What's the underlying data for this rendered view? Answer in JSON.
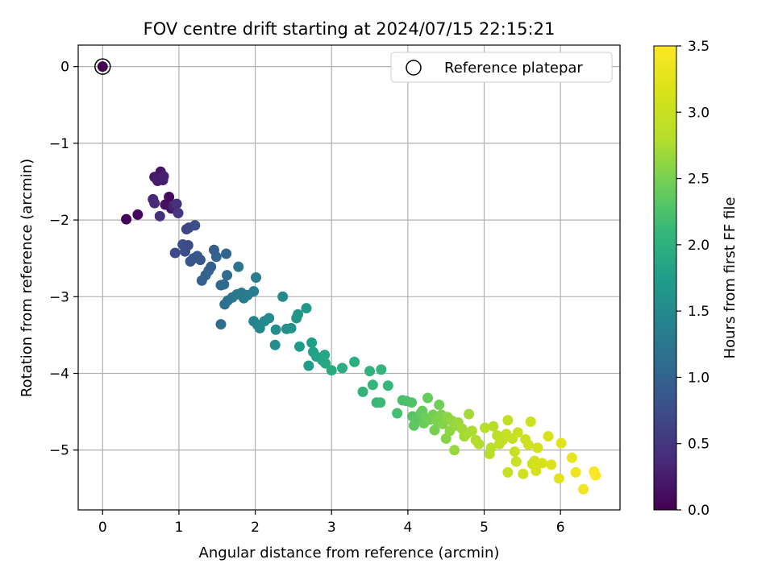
{
  "chart_data": {
    "type": "scatter",
    "title": "FOV centre drift starting at 2024/07/15 22:15:21",
    "xlabel": "Angular distance from reference (arcmin)",
    "ylabel": "Rotation from reference (arcmin)",
    "xlim": [
      -0.32,
      6.78
    ],
    "ylim": [
      -5.78,
      0.28
    ],
    "xticks": [
      0,
      1,
      2,
      3,
      4,
      5,
      6
    ],
    "yticks": [
      0,
      -1,
      -2,
      -3,
      -4,
      -5
    ],
    "xtick_labels": [
      "0",
      "1",
      "2",
      "3",
      "4",
      "5",
      "6"
    ],
    "ytick_labels": [
      "0",
      "−1",
      "−2",
      "−3",
      "−4",
      "−5"
    ],
    "grid": true,
    "legend": {
      "label": "Reference platepar",
      "position": "top-right"
    },
    "colorbar": {
      "label": "Hours from first FF file",
      "range": [
        0,
        3.5
      ],
      "ticks": [
        0.0,
        0.5,
        1.0,
        1.5,
        2.0,
        2.5,
        3.0,
        3.5
      ],
      "tick_labels": [
        "0.0",
        "0.5",
        "1.0",
        "1.5",
        "2.0",
        "2.5",
        "3.0",
        "3.5"
      ],
      "colormap": "viridis"
    },
    "reference_point": {
      "x": 0,
      "y": 0,
      "t": 0
    },
    "points": [
      {
        "x": 0.31,
        "y": -1.99,
        "t": 0.03
      },
      {
        "x": 0.46,
        "y": -1.93,
        "t": 0.05
      },
      {
        "x": 0.68,
        "y": -1.44,
        "t": 0.22
      },
      {
        "x": 0.72,
        "y": -1.49,
        "t": 0.25
      },
      {
        "x": 0.76,
        "y": -1.37,
        "t": 0.2
      },
      {
        "x": 0.79,
        "y": -1.48,
        "t": 0.24
      },
      {
        "x": 0.8,
        "y": -1.43,
        "t": 0.28
      },
      {
        "x": 0.66,
        "y": -1.73,
        "t": 0.35
      },
      {
        "x": 0.68,
        "y": -1.78,
        "t": 0.38
      },
      {
        "x": 0.75,
        "y": -1.95,
        "t": 0.42
      },
      {
        "x": 0.82,
        "y": -1.8,
        "t": 0.12
      },
      {
        "x": 0.87,
        "y": -1.7,
        "t": 0.1
      },
      {
        "x": 0.9,
        "y": -1.85,
        "t": 0.15
      },
      {
        "x": 0.93,
        "y": -1.82,
        "t": 0.3
      },
      {
        "x": 0.97,
        "y": -1.79,
        "t": 0.45
      },
      {
        "x": 0.99,
        "y": -1.91,
        "t": 0.5
      },
      {
        "x": 0.95,
        "y": -2.43,
        "t": 0.7
      },
      {
        "x": 1.05,
        "y": -2.32,
        "t": 0.75
      },
      {
        "x": 1.08,
        "y": -2.41,
        "t": 0.78
      },
      {
        "x": 1.12,
        "y": -2.33,
        "t": 0.72
      },
      {
        "x": 1.1,
        "y": -2.12,
        "t": 0.65
      },
      {
        "x": 1.13,
        "y": -2.1,
        "t": 0.68
      },
      {
        "x": 1.21,
        "y": -2.07,
        "t": 0.74
      },
      {
        "x": 1.15,
        "y": -2.54,
        "t": 0.82
      },
      {
        "x": 1.19,
        "y": -2.5,
        "t": 0.85
      },
      {
        "x": 1.24,
        "y": -2.47,
        "t": 0.88
      },
      {
        "x": 1.28,
        "y": -2.52,
        "t": 0.86
      },
      {
        "x": 1.3,
        "y": -2.79,
        "t": 0.95
      },
      {
        "x": 1.35,
        "y": -2.72,
        "t": 0.98
      },
      {
        "x": 1.39,
        "y": -2.66,
        "t": 1.0
      },
      {
        "x": 1.42,
        "y": -2.61,
        "t": 0.96
      },
      {
        "x": 1.46,
        "y": -2.39,
        "t": 0.92
      },
      {
        "x": 1.49,
        "y": -2.48,
        "t": 1.02
      },
      {
        "x": 1.55,
        "y": -2.85,
        "t": 1.05
      },
      {
        "x": 1.59,
        "y": -2.84,
        "t": 1.08
      },
      {
        "x": 1.62,
        "y": -2.44,
        "t": 1.04
      },
      {
        "x": 1.63,
        "y": -2.72,
        "t": 1.1
      },
      {
        "x": 1.55,
        "y": -3.36,
        "t": 1.12
      },
      {
        "x": 1.6,
        "y": -3.1,
        "t": 1.15
      },
      {
        "x": 1.64,
        "y": -3.05,
        "t": 1.18
      },
      {
        "x": 1.7,
        "y": -3.01,
        "t": 1.22
      },
      {
        "x": 1.76,
        "y": -2.97,
        "t": 1.25
      },
      {
        "x": 1.78,
        "y": -2.61,
        "t": 1.2
      },
      {
        "x": 1.82,
        "y": -2.95,
        "t": 1.28
      },
      {
        "x": 1.85,
        "y": -3.02,
        "t": 1.3
      },
      {
        "x": 1.9,
        "y": -2.98,
        "t": 1.32
      },
      {
        "x": 1.98,
        "y": -2.93,
        "t": 1.35
      },
      {
        "x": 2.01,
        "y": -2.75,
        "t": 1.33
      },
      {
        "x": 1.98,
        "y": -3.32,
        "t": 1.38
      },
      {
        "x": 2.03,
        "y": -3.37,
        "t": 1.42
      },
      {
        "x": 2.06,
        "y": -3.41,
        "t": 1.45
      },
      {
        "x": 2.12,
        "y": -3.32,
        "t": 1.48
      },
      {
        "x": 2.18,
        "y": -3.28,
        "t": 1.5
      },
      {
        "x": 2.26,
        "y": -3.63,
        "t": 1.55
      },
      {
        "x": 2.27,
        "y": -3.43,
        "t": 1.52
      },
      {
        "x": 2.36,
        "y": -3.0,
        "t": 1.5
      },
      {
        "x": 2.41,
        "y": -3.42,
        "t": 1.56
      },
      {
        "x": 2.47,
        "y": -3.41,
        "t": 1.6
      },
      {
        "x": 2.54,
        "y": -3.28,
        "t": 1.64
      },
      {
        "x": 2.56,
        "y": -3.23,
        "t": 1.66
      },
      {
        "x": 2.58,
        "y": -3.65,
        "t": 1.7
      },
      {
        "x": 2.67,
        "y": -3.15,
        "t": 1.68
      },
      {
        "x": 2.7,
        "y": -3.9,
        "t": 1.72
      },
      {
        "x": 2.74,
        "y": -3.6,
        "t": 1.75
      },
      {
        "x": 2.76,
        "y": -3.72,
        "t": 1.78
      },
      {
        "x": 2.8,
        "y": -3.78,
        "t": 1.8
      },
      {
        "x": 2.88,
        "y": -3.83,
        "t": 1.84
      },
      {
        "x": 2.91,
        "y": -3.76,
        "t": 1.86
      },
      {
        "x": 2.92,
        "y": -3.87,
        "t": 1.88
      },
      {
        "x": 3.0,
        "y": -3.96,
        "t": 1.92
      },
      {
        "x": 3.14,
        "y": -3.93,
        "t": 1.95
      },
      {
        "x": 3.3,
        "y": -3.85,
        "t": 1.98
      },
      {
        "x": 3.41,
        "y": -4.24,
        "t": 2.05
      },
      {
        "x": 3.5,
        "y": -3.97,
        "t": 2.02
      },
      {
        "x": 3.54,
        "y": -4.15,
        "t": 2.08
      },
      {
        "x": 3.59,
        "y": -4.38,
        "t": 2.12
      },
      {
        "x": 3.64,
        "y": -4.38,
        "t": 2.14
      },
      {
        "x": 3.65,
        "y": -3.95,
        "t": 2.06
      },
      {
        "x": 3.74,
        "y": -4.16,
        "t": 2.1
      },
      {
        "x": 3.86,
        "y": -4.52,
        "t": 2.2
      },
      {
        "x": 3.93,
        "y": -4.35,
        "t": 2.22
      },
      {
        "x": 3.98,
        "y": -4.36,
        "t": 2.24
      },
      {
        "x": 4.05,
        "y": -4.38,
        "t": 2.26
      },
      {
        "x": 4.06,
        "y": -4.56,
        "t": 2.3
      },
      {
        "x": 4.08,
        "y": -4.68,
        "t": 2.34
      },
      {
        "x": 4.1,
        "y": -4.62,
        "t": 2.36
      },
      {
        "x": 4.13,
        "y": -4.58,
        "t": 2.32
      },
      {
        "x": 4.17,
        "y": -4.52,
        "t": 2.38
      },
      {
        "x": 4.19,
        "y": -4.49,
        "t": 2.4
      },
      {
        "x": 4.21,
        "y": -4.65,
        "t": 2.42
      },
      {
        "x": 4.24,
        "y": -4.58,
        "t": 2.44
      },
      {
        "x": 4.26,
        "y": -4.32,
        "t": 2.4
      },
      {
        "x": 4.29,
        "y": -4.6,
        "t": 2.46
      },
      {
        "x": 4.33,
        "y": -4.54,
        "t": 2.48
      },
      {
        "x": 4.35,
        "y": -4.74,
        "t": 2.5
      },
      {
        "x": 4.38,
        "y": -4.62,
        "t": 2.52
      },
      {
        "x": 4.41,
        "y": -4.41,
        "t": 2.46
      },
      {
        "x": 4.44,
        "y": -4.54,
        "t": 2.54
      },
      {
        "x": 4.46,
        "y": -4.66,
        "t": 2.56
      },
      {
        "x": 4.5,
        "y": -4.85,
        "t": 2.58
      },
      {
        "x": 4.52,
        "y": -4.57,
        "t": 2.6
      },
      {
        "x": 4.55,
        "y": -4.75,
        "t": 2.62
      },
      {
        "x": 4.58,
        "y": -4.62,
        "t": 2.63
      },
      {
        "x": 4.61,
        "y": -5.0,
        "t": 2.66
      },
      {
        "x": 4.63,
        "y": -4.68,
        "t": 2.65
      },
      {
        "x": 4.66,
        "y": -4.64,
        "t": 2.67
      },
      {
        "x": 4.71,
        "y": -4.72,
        "t": 2.7
      },
      {
        "x": 4.74,
        "y": -4.82,
        "t": 2.72
      },
      {
        "x": 4.78,
        "y": -4.78,
        "t": 2.74
      },
      {
        "x": 4.8,
        "y": -4.53,
        "t": 2.72
      },
      {
        "x": 4.84,
        "y": -4.75,
        "t": 2.76
      },
      {
        "x": 4.89,
        "y": -4.87,
        "t": 2.78
      },
      {
        "x": 4.93,
        "y": -4.92,
        "t": 2.8
      },
      {
        "x": 5.01,
        "y": -4.71,
        "t": 2.82
      },
      {
        "x": 5.07,
        "y": -5.05,
        "t": 2.84
      },
      {
        "x": 5.09,
        "y": -4.97,
        "t": 2.86
      },
      {
        "x": 5.12,
        "y": -4.69,
        "t": 2.84
      },
      {
        "x": 5.17,
        "y": -4.81,
        "t": 2.88
      },
      {
        "x": 5.2,
        "y": -4.92,
        "t": 2.9
      },
      {
        "x": 5.24,
        "y": -4.87,
        "t": 2.92
      },
      {
        "x": 5.29,
        "y": -4.79,
        "t": 2.94
      },
      {
        "x": 5.31,
        "y": -4.61,
        "t": 2.92
      },
      {
        "x": 5.31,
        "y": -5.29,
        "t": 2.98
      },
      {
        "x": 5.37,
        "y": -4.85,
        "t": 2.96
      },
      {
        "x": 5.4,
        "y": -5.02,
        "t": 2.99
      },
      {
        "x": 5.42,
        "y": -5.15,
        "t": 3.01
      },
      {
        "x": 5.44,
        "y": -4.77,
        "t": 3.0
      },
      {
        "x": 5.51,
        "y": -5.31,
        "t": 3.04
      },
      {
        "x": 5.54,
        "y": -4.86,
        "t": 3.02
      },
      {
        "x": 5.58,
        "y": -4.93,
        "t": 3.05
      },
      {
        "x": 5.61,
        "y": -4.63,
        "t": 3.03
      },
      {
        "x": 5.63,
        "y": -5.18,
        "t": 3.08
      },
      {
        "x": 5.66,
        "y": -5.14,
        "t": 3.1
      },
      {
        "x": 5.68,
        "y": -5.27,
        "t": 3.12
      },
      {
        "x": 5.7,
        "y": -4.97,
        "t": 3.1
      },
      {
        "x": 5.76,
        "y": -5.17,
        "t": 3.15
      },
      {
        "x": 5.84,
        "y": -4.82,
        "t": 3.14
      },
      {
        "x": 5.88,
        "y": -5.19,
        "t": 3.2
      },
      {
        "x": 5.98,
        "y": -5.37,
        "t": 3.25
      },
      {
        "x": 6.01,
        "y": -4.91,
        "t": 3.22
      },
      {
        "x": 6.15,
        "y": -5.1,
        "t": 3.3
      },
      {
        "x": 6.2,
        "y": -5.29,
        "t": 3.35
      },
      {
        "x": 6.3,
        "y": -5.51,
        "t": 3.4
      },
      {
        "x": 6.44,
        "y": -5.28,
        "t": 3.45
      },
      {
        "x": 6.46,
        "y": -5.33,
        "t": 3.48
      }
    ]
  }
}
